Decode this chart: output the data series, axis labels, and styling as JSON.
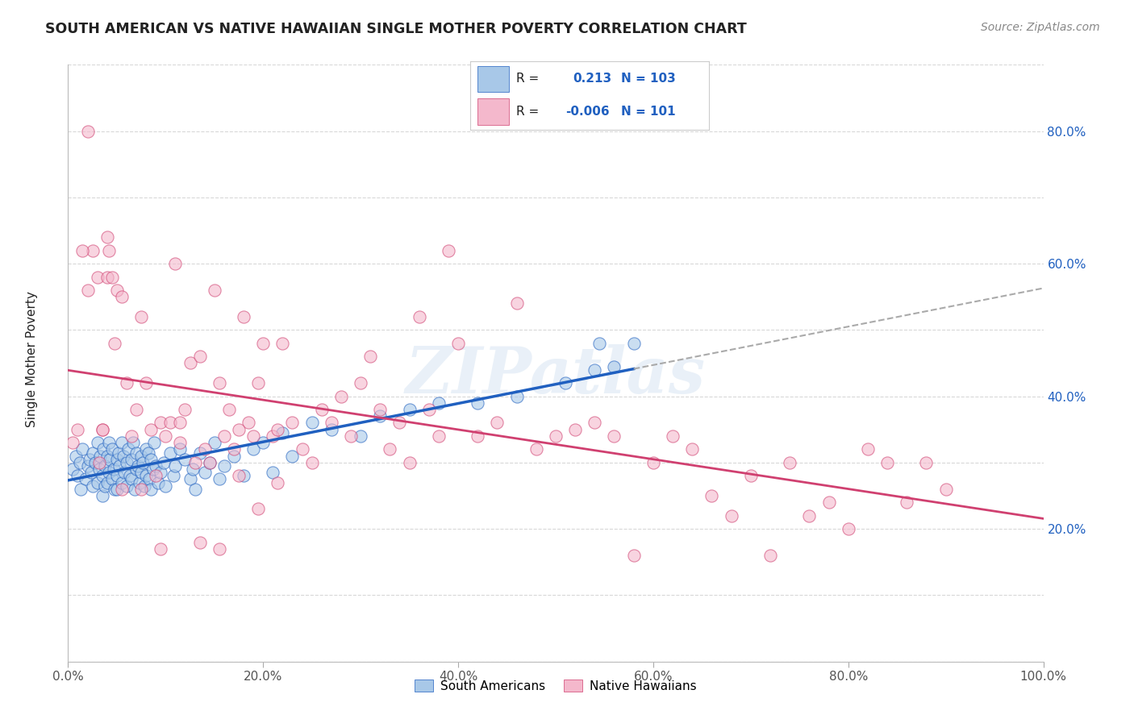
{
  "title": "SOUTH AMERICAN VS NATIVE HAWAIIAN SINGLE MOTHER POVERTY CORRELATION CHART",
  "source": "Source: ZipAtlas.com",
  "ylabel": "Single Mother Poverty",
  "xlim": [
    0.0,
    1.0
  ],
  "ylim": [
    0.0,
    0.9
  ],
  "x_ticks": [
    0.0,
    0.2,
    0.4,
    0.6,
    0.8,
    1.0
  ],
  "x_tick_labels": [
    "0.0%",
    "20.0%",
    "40.0%",
    "60.0%",
    "80.0%",
    "100.0%"
  ],
  "y_ticks": [
    0.2,
    0.4,
    0.6,
    0.8
  ],
  "y_tick_labels": [
    "20.0%",
    "40.0%",
    "60.0%",
    "80.0%"
  ],
  "legend_r_blue": "0.213",
  "legend_n_blue": "103",
  "legend_r_pink": "-0.006",
  "legend_n_pink": "101",
  "blue_color": "#a8c8e8",
  "pink_color": "#f4b8cc",
  "blue_line_color": "#2060c0",
  "pink_line_color": "#d04070",
  "grid_color": "#d8d8d8",
  "background_color": "#ffffff",
  "title_color": "#222222",
  "source_color": "#888888",
  "watermark": "ZIPatlas",
  "blue_scatter_x": [
    0.005,
    0.008,
    0.01,
    0.012,
    0.013,
    0.015,
    0.018,
    0.02,
    0.022,
    0.024,
    0.025,
    0.025,
    0.028,
    0.03,
    0.03,
    0.032,
    0.033,
    0.035,
    0.035,
    0.036,
    0.038,
    0.038,
    0.04,
    0.04,
    0.042,
    0.042,
    0.043,
    0.045,
    0.045,
    0.047,
    0.048,
    0.05,
    0.05,
    0.05,
    0.052,
    0.053,
    0.055,
    0.055,
    0.057,
    0.058,
    0.06,
    0.06,
    0.062,
    0.063,
    0.065,
    0.065,
    0.067,
    0.068,
    0.07,
    0.07,
    0.072,
    0.073,
    0.075,
    0.075,
    0.077,
    0.078,
    0.08,
    0.08,
    0.082,
    0.083,
    0.085,
    0.085,
    0.087,
    0.088,
    0.09,
    0.092,
    0.095,
    0.098,
    0.1,
    0.105,
    0.108,
    0.11,
    0.115,
    0.12,
    0.125,
    0.128,
    0.13,
    0.135,
    0.14,
    0.145,
    0.15,
    0.155,
    0.16,
    0.17,
    0.18,
    0.19,
    0.2,
    0.21,
    0.22,
    0.23,
    0.25,
    0.27,
    0.3,
    0.32,
    0.35,
    0.38,
    0.42,
    0.46,
    0.51,
    0.54,
    0.545,
    0.56,
    0.58
  ],
  "blue_scatter_y": [
    0.29,
    0.31,
    0.28,
    0.3,
    0.26,
    0.32,
    0.275,
    0.295,
    0.305,
    0.285,
    0.315,
    0.265,
    0.3,
    0.27,
    0.33,
    0.29,
    0.31,
    0.28,
    0.25,
    0.32,
    0.295,
    0.265,
    0.31,
    0.27,
    0.33,
    0.285,
    0.305,
    0.275,
    0.32,
    0.29,
    0.26,
    0.305,
    0.28,
    0.26,
    0.315,
    0.295,
    0.33,
    0.27,
    0.31,
    0.285,
    0.3,
    0.265,
    0.32,
    0.28,
    0.305,
    0.275,
    0.33,
    0.26,
    0.29,
    0.315,
    0.295,
    0.27,
    0.31,
    0.285,
    0.3,
    0.265,
    0.32,
    0.28,
    0.315,
    0.275,
    0.305,
    0.26,
    0.29,
    0.33,
    0.295,
    0.27,
    0.285,
    0.3,
    0.265,
    0.315,
    0.28,
    0.295,
    0.32,
    0.305,
    0.275,
    0.29,
    0.26,
    0.315,
    0.285,
    0.3,
    0.33,
    0.275,
    0.295,
    0.31,
    0.28,
    0.32,
    0.33,
    0.285,
    0.345,
    0.31,
    0.36,
    0.35,
    0.34,
    0.37,
    0.38,
    0.39,
    0.39,
    0.4,
    0.42,
    0.44,
    0.48,
    0.445,
    0.48
  ],
  "pink_scatter_x": [
    0.005,
    0.01,
    0.02,
    0.02,
    0.025,
    0.03,
    0.032,
    0.035,
    0.04,
    0.04,
    0.042,
    0.045,
    0.048,
    0.05,
    0.055,
    0.06,
    0.065,
    0.07,
    0.075,
    0.08,
    0.085,
    0.09,
    0.095,
    0.1,
    0.105,
    0.11,
    0.115,
    0.12,
    0.125,
    0.13,
    0.135,
    0.14,
    0.145,
    0.15,
    0.155,
    0.16,
    0.165,
    0.17,
    0.175,
    0.18,
    0.185,
    0.19,
    0.195,
    0.2,
    0.21,
    0.215,
    0.22,
    0.23,
    0.24,
    0.25,
    0.26,
    0.27,
    0.28,
    0.29,
    0.3,
    0.31,
    0.32,
    0.33,
    0.34,
    0.35,
    0.36,
    0.37,
    0.38,
    0.39,
    0.4,
    0.42,
    0.44,
    0.46,
    0.48,
    0.5,
    0.52,
    0.54,
    0.56,
    0.58,
    0.6,
    0.62,
    0.64,
    0.66,
    0.68,
    0.7,
    0.72,
    0.74,
    0.76,
    0.78,
    0.8,
    0.82,
    0.84,
    0.86,
    0.88,
    0.9,
    0.015,
    0.035,
    0.055,
    0.075,
    0.095,
    0.115,
    0.135,
    0.155,
    0.175,
    0.195,
    0.215
  ],
  "pink_scatter_y": [
    0.33,
    0.35,
    0.56,
    0.8,
    0.62,
    0.58,
    0.3,
    0.35,
    0.64,
    0.58,
    0.62,
    0.58,
    0.48,
    0.56,
    0.55,
    0.42,
    0.34,
    0.38,
    0.52,
    0.42,
    0.35,
    0.28,
    0.36,
    0.34,
    0.36,
    0.6,
    0.33,
    0.38,
    0.45,
    0.3,
    0.46,
    0.32,
    0.3,
    0.56,
    0.42,
    0.34,
    0.38,
    0.32,
    0.28,
    0.52,
    0.36,
    0.34,
    0.42,
    0.48,
    0.34,
    0.35,
    0.48,
    0.36,
    0.32,
    0.3,
    0.38,
    0.36,
    0.4,
    0.34,
    0.42,
    0.46,
    0.38,
    0.32,
    0.36,
    0.3,
    0.52,
    0.38,
    0.34,
    0.62,
    0.48,
    0.34,
    0.36,
    0.54,
    0.32,
    0.34,
    0.35,
    0.36,
    0.34,
    0.16,
    0.3,
    0.34,
    0.32,
    0.25,
    0.22,
    0.28,
    0.16,
    0.3,
    0.22,
    0.24,
    0.2,
    0.32,
    0.3,
    0.24,
    0.3,
    0.26,
    0.62,
    0.35,
    0.26,
    0.26,
    0.17,
    0.36,
    0.18,
    0.17,
    0.35,
    0.23,
    0.27
  ]
}
